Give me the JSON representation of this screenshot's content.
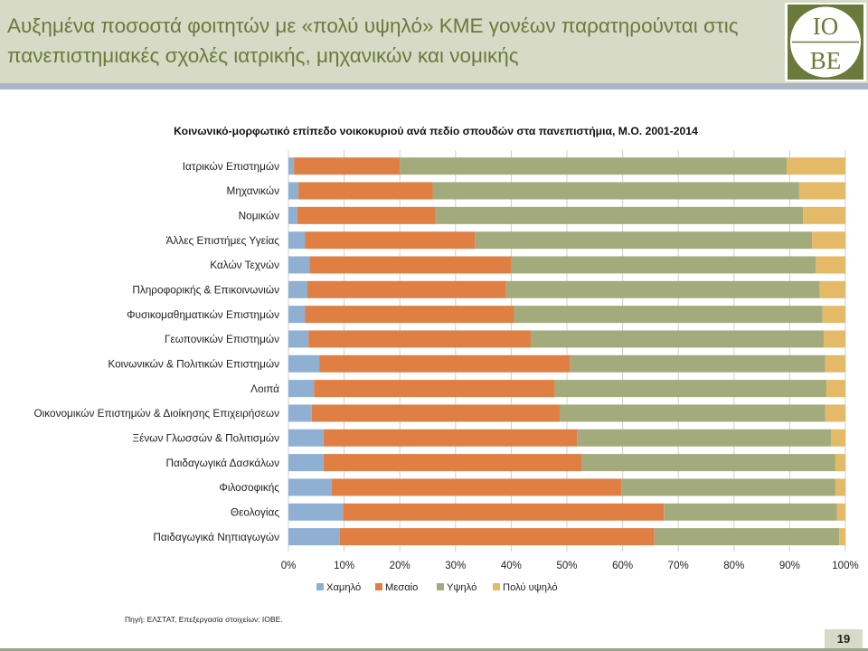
{
  "slide": {
    "title": "Αυξημένα ποσοστά φοιτητών με «πολύ υψηλό» ΚΜΕ γονέων παρατηρούνται στις πανεπιστημιακές σχολές ιατρικής, μηχανικών και νομικής",
    "logo_top": "IO",
    "logo_bottom": "BE",
    "source": "Πηγή: ΕΛΣΤΑΤ, Επεξεργασία στοιχείων: ΙΟΒΕ.",
    "page_number": "19"
  },
  "colors": {
    "low": "#8fb0d3",
    "medium": "#e07f44",
    "high": "#a3ab7d",
    "very_high": "#e4ba68",
    "header_bg": "#d6dac6",
    "header_line": "#a9b6c8",
    "title_text": "#6b7a3a",
    "logo_bg": "#6b7a3a"
  },
  "chart_data": {
    "type": "bar",
    "orientation": "horizontal",
    "stacked": "percent",
    "title": "Κοινωνικό-μορφωτικό επίπεδο νοικοκυριού ανά πεδίο σπουδών στα πανεπιστήμια, Μ.Ο. 2001-2014",
    "xlabel": "",
    "ylabel": "",
    "xlim": [
      0,
      100
    ],
    "x_ticks": [
      "0%",
      "10%",
      "20%",
      "30%",
      "40%",
      "50%",
      "60%",
      "70%",
      "80%",
      "90%",
      "100%"
    ],
    "grid": "vertical",
    "legend_position": "bottom",
    "categories": [
      "Ιατρικών Επιστημών",
      "Μηχανικών",
      "Νομικών",
      "Άλλες Επιστήμες Υγείας",
      "Καλών Τεχνών",
      "Πληροφορικής & Επικοινωνιών",
      "Φυσικομαθηματικών Επιστημών",
      "Γεωπονικών Επιστημών",
      "Κοινωνικών & Πολιτικών Επιστημών",
      "Λοιπά",
      "Οικονομικών Επιστημών & Διοίκησης Επιχειρήσεων",
      "Ξένων Γλωσσών & Πολιτισμών",
      "Παιδαγωγικά Δασκάλων",
      "Φιλοσοφικής",
      "Θεολογίας",
      "Παιδαγωγικά Νηπιαγωγών"
    ],
    "series": [
      {
        "name": "Χαμηλό",
        "color": "#8fb0d3",
        "values": [
          1.0,
          1.8,
          1.6,
          3.0,
          3.8,
          3.4,
          3.0,
          3.6,
          5.6,
          4.6,
          4.2,
          6.3,
          6.3,
          7.8,
          9.8,
          9.2
        ]
      },
      {
        "name": "Μεσαίο",
        "color": "#e07f44",
        "values": [
          19.0,
          24.1,
          24.8,
          30.5,
          36.2,
          35.7,
          37.5,
          39.9,
          45.0,
          43.2,
          44.5,
          45.5,
          46.3,
          52.0,
          57.6,
          56.5
        ]
      },
      {
        "name": "Υψηλό",
        "color": "#a3ab7d",
        "values": [
          69.5,
          65.8,
          66.0,
          60.5,
          54.7,
          56.3,
          55.4,
          52.6,
          45.8,
          48.8,
          47.7,
          45.6,
          45.6,
          38.4,
          31.1,
          33.2
        ]
      },
      {
        "name": "Πολύ υψηλό",
        "color": "#e4ba68",
        "values": [
          10.5,
          8.3,
          7.6,
          6.0,
          5.3,
          4.6,
          4.1,
          3.9,
          3.6,
          3.4,
          3.6,
          2.6,
          1.8,
          1.8,
          1.5,
          1.1
        ]
      }
    ]
  }
}
